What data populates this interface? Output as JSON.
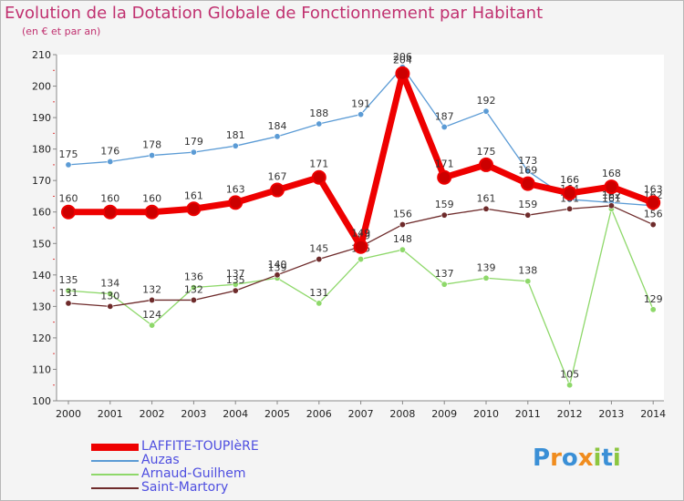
{
  "title": "Evolution de la Dotation Globale de Fonctionnement par Habitant",
  "subtitle": "(en € et par an)",
  "logo": {
    "text": "Proxiti",
    "letters": [
      "P",
      "r",
      "o",
      "x",
      "i",
      "t",
      "i"
    ]
  },
  "chart_data": {
    "type": "line",
    "title": "Evolution de la Dotation Globale de Fonctionnement par Habitant",
    "ylabel": "(en € et par an)",
    "xlabel": "",
    "ylim": [
      100,
      210
    ],
    "yticks": [
      100,
      110,
      120,
      130,
      140,
      150,
      160,
      170,
      180,
      190,
      200,
      210
    ],
    "grid": false,
    "legend": "bottom-left",
    "categories": [
      "2000",
      "2001",
      "2002",
      "2003",
      "2004",
      "2005",
      "2006",
      "2007",
      "2008",
      "2009",
      "2010",
      "2011",
      "2012",
      "2013",
      "2014"
    ],
    "series": [
      {
        "name": "Auzas",
        "color": "#5b9bd5",
        "values": [
          175,
          176,
          178,
          179,
          181,
          184,
          188,
          191,
          206,
          187,
          192,
          173,
          164,
          163,
          162
        ]
      },
      {
        "name": "Arnaud-Guilhem",
        "color": "#8ed86a",
        "values": [
          135,
          134,
          124,
          136,
          137,
          139,
          131,
          145,
          148,
          137,
          139,
          138,
          105,
          161,
          129
        ]
      },
      {
        "name": "Saint-Martory",
        "color": "#6e2b2b",
        "values": [
          131,
          130,
          132,
          132,
          135,
          140,
          145,
          149,
          156,
          159,
          161,
          159,
          161,
          162,
          156
        ]
      },
      {
        "name": "LAFFITE-TOUPIèRE",
        "color": "#ee0000",
        "values": [
          160,
          160,
          160,
          161,
          163,
          167,
          171,
          149,
          204,
          171,
          175,
          169,
          166,
          168,
          163
        ]
      }
    ]
  }
}
